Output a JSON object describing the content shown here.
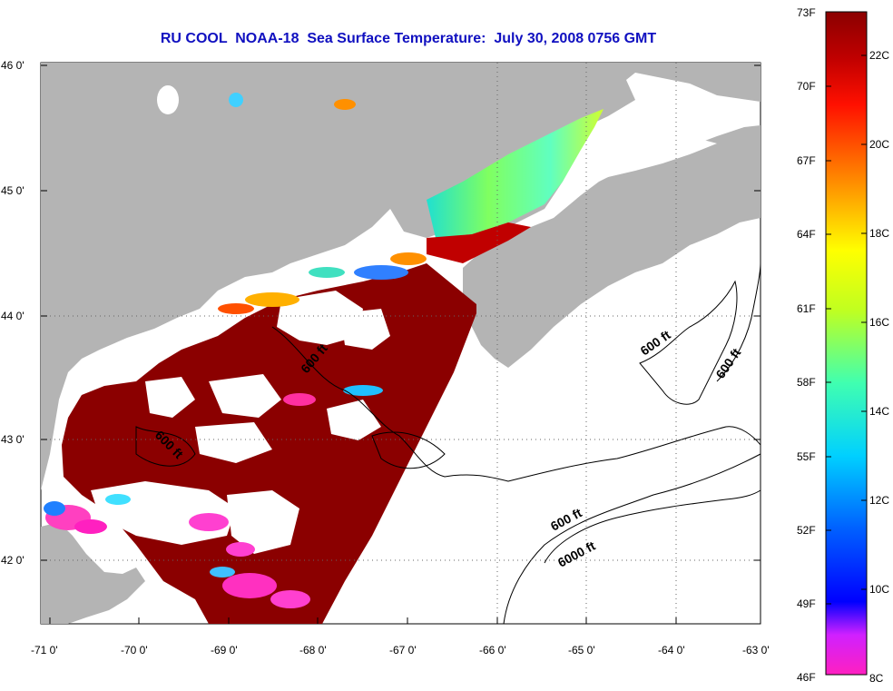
{
  "title": "RU COOL  NOAA-18  Sea Surface Temperature:  July 30, 2008 0756 GMT",
  "latitude_labels": [
    "46 0'",
    "45 0'",
    "44 0'",
    "43 0'",
    "42 0'"
  ],
  "longitude_labels": [
    "-71 0'",
    "-70 0'",
    "-69 0'",
    "-68 0'",
    "-67 0'",
    "-66 0'",
    "-65 0'",
    "-64 0'",
    "-63 0'"
  ],
  "contour_labels": [
    "600 ft",
    "600 ft",
    "600 ft",
    "600 ft",
    "600 ft",
    "6000 ft"
  ],
  "colorbar": {
    "fahrenheit_labels": [
      "73F",
      "70F",
      "67F",
      "64F",
      "61F",
      "58F",
      "55F",
      "52F",
      "49F",
      "46F"
    ],
    "celsius_labels": [
      "22C",
      "20C",
      "18C",
      "16C",
      "14C",
      "12C",
      "10C",
      "8C"
    ]
  },
  "colors": {
    "land": "#b4b4b4",
    "ocean_nodata": "#ffffff",
    "warm": "#8b0000",
    "title": "#1010c0"
  }
}
